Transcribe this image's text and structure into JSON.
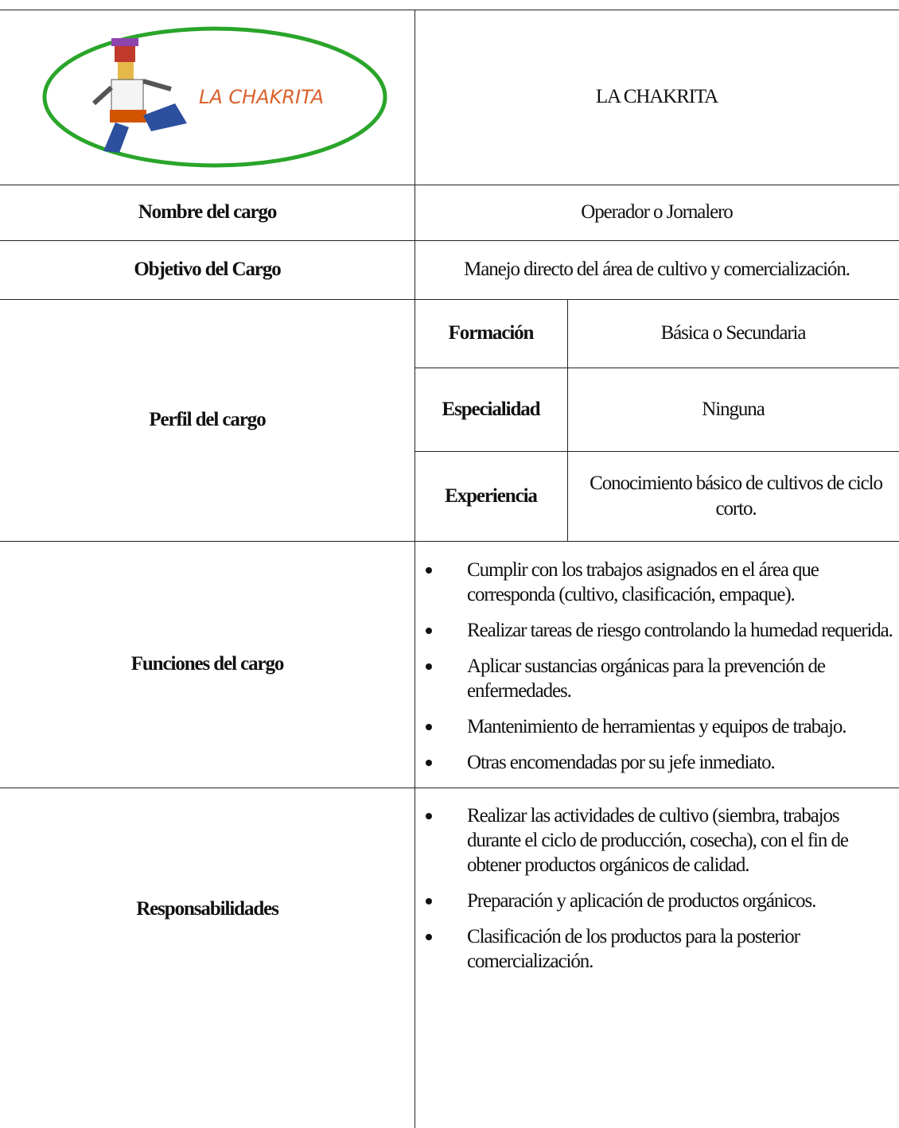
{
  "header": {
    "logo_text": "LA CHAKRITA",
    "title": "LA CHAKRITA"
  },
  "rows": [
    {
      "label": "Nombre del cargo",
      "value": "Operador o Jornalero"
    },
    {
      "label": "Objetivo del Cargo",
      "value": "Manejo directo del área de cultivo y comercialización."
    }
  ],
  "profile": {
    "label": "Perfil del cargo",
    "items": [
      {
        "label": "Formación",
        "value": "Básica o Secundaria"
      },
      {
        "label": "Especialidad",
        "value": "Ninguna"
      },
      {
        "label": "Experiencia",
        "value": "Conocimiento básico de cultivos de ciclo corto."
      }
    ]
  },
  "functions": {
    "label": "Funciones del cargo",
    "items": [
      "Cumplir con los trabajos asignados en el área que corresponda (cultivo, clasificación, empaque).",
      "Realizar tareas de riesgo controlando la humedad requerida.",
      "Aplicar sustancias orgánicas para la prevención de enfermedades.",
      "Mantenimiento de herramientas y equipos de trabajo.",
      "Otras encomendadas por su jefe inmediato."
    ]
  },
  "responsibilities": {
    "label": "Responsabilidades",
    "items": [
      "Realizar las actividades de cultivo (siembra, trabajos durante el ciclo de producción, cosecha), con el fin de obtener productos orgánicos de calidad.",
      "Preparación y aplicación de productos orgánicos.",
      "Clasificación de los productos para la posterior comercialización."
    ]
  }
}
